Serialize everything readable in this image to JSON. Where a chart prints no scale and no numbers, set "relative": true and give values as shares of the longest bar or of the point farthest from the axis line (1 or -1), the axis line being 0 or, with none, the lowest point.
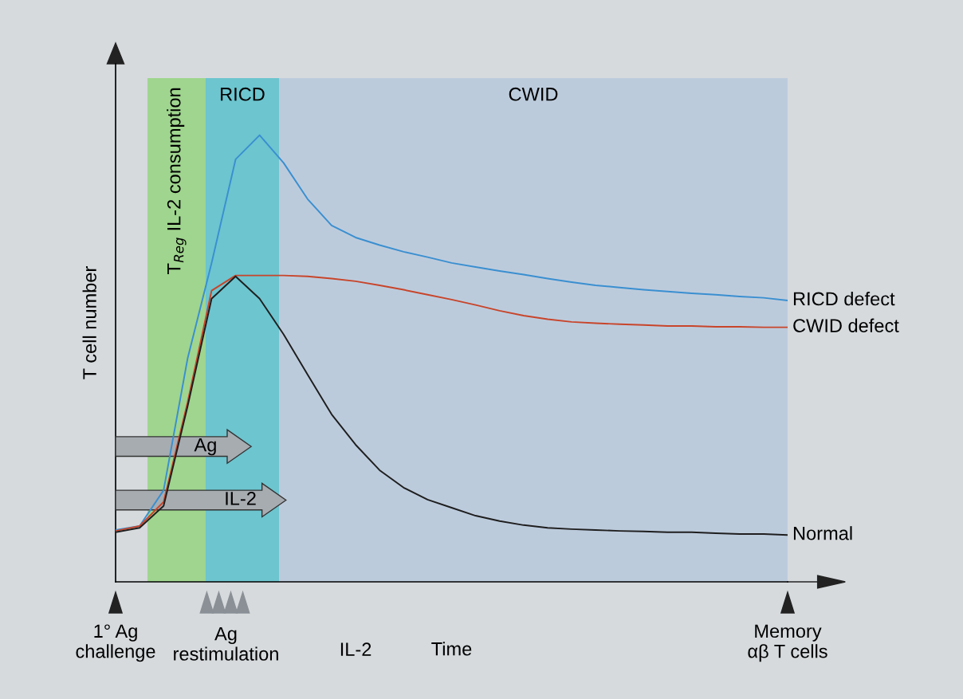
{
  "chart_data": {
    "type": "line",
    "relative": true,
    "xlabel": "Time",
    "ylabel": "T cell number",
    "categories": [
      "1° Ag\nchallenge",
      null,
      null,
      null,
      null,
      null,
      null,
      null,
      null,
      null,
      null,
      null,
      null,
      null,
      null,
      null,
      null,
      null,
      null,
      null,
      null,
      null,
      null,
      null,
      null,
      null,
      null,
      null,
      "Memory\nαβ T cells"
    ],
    "legend": false,
    "grid": false,
    "marker": "none",
    "line_style": "solid",
    "annotations": [
      "Ag",
      "IL-2",
      "Ag\nrestimulation",
      "IL-2",
      "T$_{Reg}$ IL-2 consumption",
      "RICD",
      "CWID"
    ],
    "series": [
      {
        "name": "RICD defect",
        "color": "#3a8fd0",
        "values": [
          0.116,
          0.125,
          0.205,
          0.5,
          0.714,
          0.946,
          1,
          0.938,
          0.857,
          0.798,
          0.771,
          0.754,
          0.739,
          0.727,
          0.714,
          0.705,
          0.696,
          0.688,
          0.679,
          0.671,
          0.664,
          0.659,
          0.654,
          0.65,
          0.646,
          0.643,
          0.639,
          0.636,
          0.63
        ]
      },
      {
        "name": "CWID defect",
        "color": "#c8452a",
        "values": [
          0.114,
          0.125,
          0.179,
          0.402,
          0.652,
          0.686,
          0.686,
          0.686,
          0.684,
          0.679,
          0.673,
          0.664,
          0.654,
          0.643,
          0.632,
          0.62,
          0.607,
          0.596,
          0.588,
          0.582,
          0.579,
          0.577,
          0.575,
          0.573,
          0.573,
          0.571,
          0.571,
          0.57,
          0.57
        ]
      },
      {
        "name": "Normal",
        "color": "#1e1e1e",
        "values": [
          0.111,
          0.121,
          0.17,
          0.393,
          0.634,
          0.684,
          0.634,
          0.554,
          0.464,
          0.375,
          0.307,
          0.25,
          0.211,
          0.184,
          0.166,
          0.148,
          0.136,
          0.127,
          0.121,
          0.118,
          0.116,
          0.114,
          0.113,
          0.111,
          0.111,
          0.109,
          0.107,
          0.107,
          0.105
        ]
      }
    ]
  }
}
